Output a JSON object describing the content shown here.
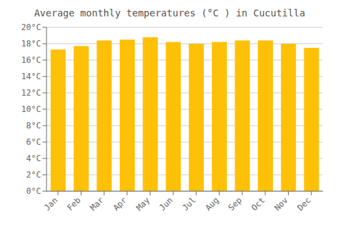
{
  "chart_data": {
    "type": "bar",
    "title": "Average monthly temperatures (°C ) in Cucutilla",
    "categories": [
      "Jan",
      "Feb",
      "Mar",
      "Apr",
      "May",
      "Jun",
      "Jul",
      "Aug",
      "Sep",
      "Oct",
      "Nov",
      "Dec"
    ],
    "values": [
      17.3,
      17.7,
      18.4,
      18.5,
      18.8,
      18.2,
      18.0,
      18.2,
      18.4,
      18.4,
      18.0,
      17.5
    ],
    "color": "#FFC107",
    "ylim": [
      0,
      20
    ],
    "yticks": [
      {
        "value": 0,
        "label": "0°C"
      },
      {
        "value": 2,
        "label": "2°C"
      },
      {
        "value": 4,
        "label": "4°C"
      },
      {
        "value": 6,
        "label": "6°C"
      },
      {
        "value": 8,
        "label": "8°C"
      },
      {
        "value": 10,
        "label": "10°C"
      },
      {
        "value": 12,
        "label": "12°C"
      },
      {
        "value": 14,
        "label": "14°C"
      },
      {
        "value": 16,
        "label": "16°C"
      },
      {
        "value": 18,
        "label": "18°C"
      },
      {
        "value": 20,
        "label": "20°C"
      }
    ],
    "grid": true
  }
}
